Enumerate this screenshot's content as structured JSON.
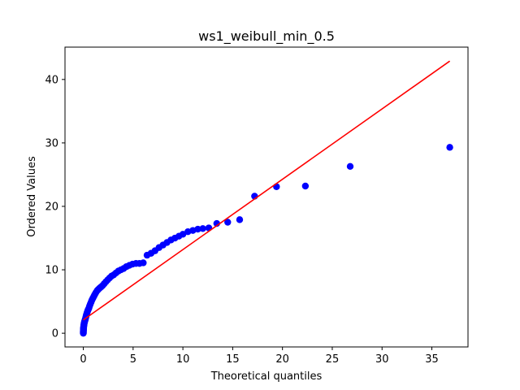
{
  "chart_data": {
    "type": "scatter",
    "title": "ws1_weibull_min_0.5",
    "xlabel": "Theoretical quantiles",
    "ylabel": "Ordered Values",
    "xlim": [
      -1.84,
      38.63
    ],
    "ylim": [
      -2.16,
      45.1
    ],
    "xticks": [
      0,
      5,
      10,
      15,
      20,
      25,
      30,
      35
    ],
    "yticks": [
      0,
      10,
      20,
      30,
      40
    ],
    "grid": false,
    "colors": {
      "points": "#0000ff",
      "line": "#ff0000"
    },
    "fit_line": {
      "x": [
        0.0,
        36.8
      ],
      "y": [
        2.1,
        42.9
      ]
    },
    "series": [
      {
        "values_x": [
          0.0,
          0.0,
          0.0,
          0.0,
          0.01,
          0.01,
          0.01,
          0.02,
          0.02,
          0.03,
          0.03,
          0.04,
          0.05,
          0.06,
          0.07,
          0.08,
          0.09,
          0.1,
          0.12,
          0.14,
          0.16,
          0.18,
          0.2,
          0.23,
          0.26,
          0.29,
          0.33,
          0.37,
          0.41,
          0.46,
          0.51,
          0.57,
          0.63,
          0.7,
          0.78,
          0.86,
          0.95,
          1.05,
          1.15,
          1.26,
          1.38,
          1.5,
          1.63,
          1.78,
          1.93,
          2.09,
          2.26,
          2.44,
          2.63,
          2.83,
          3.05,
          3.28,
          3.52,
          3.78,
          4.05,
          4.33,
          4.63,
          4.95,
          5.29,
          5.64,
          6.02,
          6.4,
          6.8,
          7.2,
          7.6,
          8.0,
          8.4,
          8.8,
          9.2,
          9.6,
          10.0,
          10.5,
          11.0,
          11.5,
          12.0,
          12.6,
          13.4,
          14.5,
          15.7,
          17.2,
          19.4,
          22.3,
          26.8,
          36.8
        ],
        "values_y": [
          0.0,
          0.1,
          0.2,
          0.3,
          0.4,
          0.5,
          0.6,
          0.7,
          0.8,
          0.9,
          1.0,
          1.1,
          1.2,
          1.3,
          1.4,
          1.5,
          1.6,
          1.7,
          1.8,
          1.9,
          2.0,
          2.1,
          2.2,
          2.4,
          2.6,
          2.8,
          3.0,
          3.2,
          3.4,
          3.6,
          3.8,
          4.0,
          4.3,
          4.6,
          4.9,
          5.2,
          5.5,
          5.8,
          6.1,
          6.4,
          6.7,
          6.9,
          7.1,
          7.3,
          7.5,
          7.8,
          8.1,
          8.4,
          8.7,
          9.0,
          9.2,
          9.5,
          9.8,
          10.0,
          10.2,
          10.5,
          10.7,
          10.9,
          11.0,
          11.0,
          11.1,
          12.3,
          12.6,
          13.0,
          13.5,
          13.9,
          14.3,
          14.7,
          15.0,
          15.3,
          15.6,
          16.0,
          16.2,
          16.4,
          16.5,
          16.6,
          17.3,
          17.5,
          17.9,
          21.6,
          23.1,
          23.2,
          26.3,
          29.3
        ]
      }
    ]
  }
}
